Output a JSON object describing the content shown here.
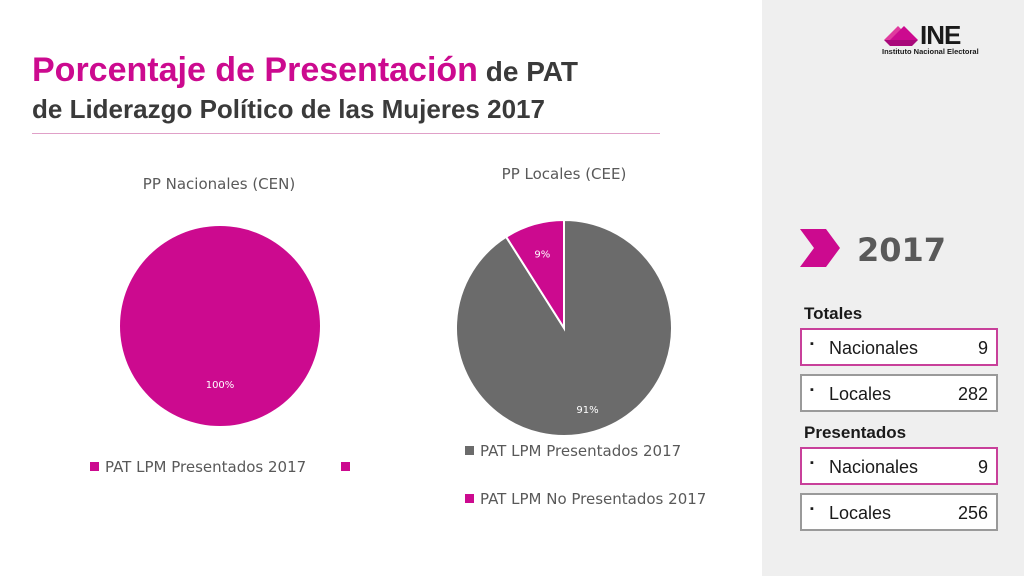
{
  "title": {
    "main": "Porcentaje de Presentación",
    "sub1": " de PAT",
    "sub2": "de Liderazgo Político de las Mujeres 2017"
  },
  "logo": {
    "name": "INE",
    "subtitle": "Instituto Nacional Electoral"
  },
  "colors": {
    "pink": "#cc0a8f",
    "gray": "#6b6b6b",
    "sidebar": "#efefef"
  },
  "chart_data": [
    {
      "type": "pie",
      "title": "PP Nacionales (CEN)",
      "slices": [
        {
          "label": "PAT LPM Presentados 2017",
          "value": 100,
          "color": "#cc0a8f",
          "data_label": "100%"
        },
        {
          "label": "",
          "value": 0,
          "color": "#cc0a8f",
          "data_label": ""
        }
      ],
      "legend": "bottom"
    },
    {
      "type": "pie",
      "title": "PP Locales (CEE)",
      "slices": [
        {
          "label": "PAT LPM Presentados 2017",
          "value": 91,
          "color": "#6b6b6b",
          "data_label": "91%"
        },
        {
          "label": "PAT LPM No Presentados 2017",
          "value": 9,
          "color": "#cc0a8f",
          "data_label": "9%"
        }
      ],
      "legend": "bottom"
    }
  ],
  "sidebar": {
    "year": "2017",
    "totales": {
      "label": "Totales",
      "items": [
        {
          "bullet": "▪",
          "label": "Nacionales",
          "value": "9"
        },
        {
          "bullet": "▪",
          "label": "Locales",
          "value": "282"
        }
      ]
    },
    "presentados": {
      "label": "Presentados",
      "items": [
        {
          "bullet": "▪",
          "label": "Nacionales",
          "value": "9"
        },
        {
          "bullet": "▪",
          "label": "Locales",
          "value": "256"
        }
      ]
    }
  }
}
